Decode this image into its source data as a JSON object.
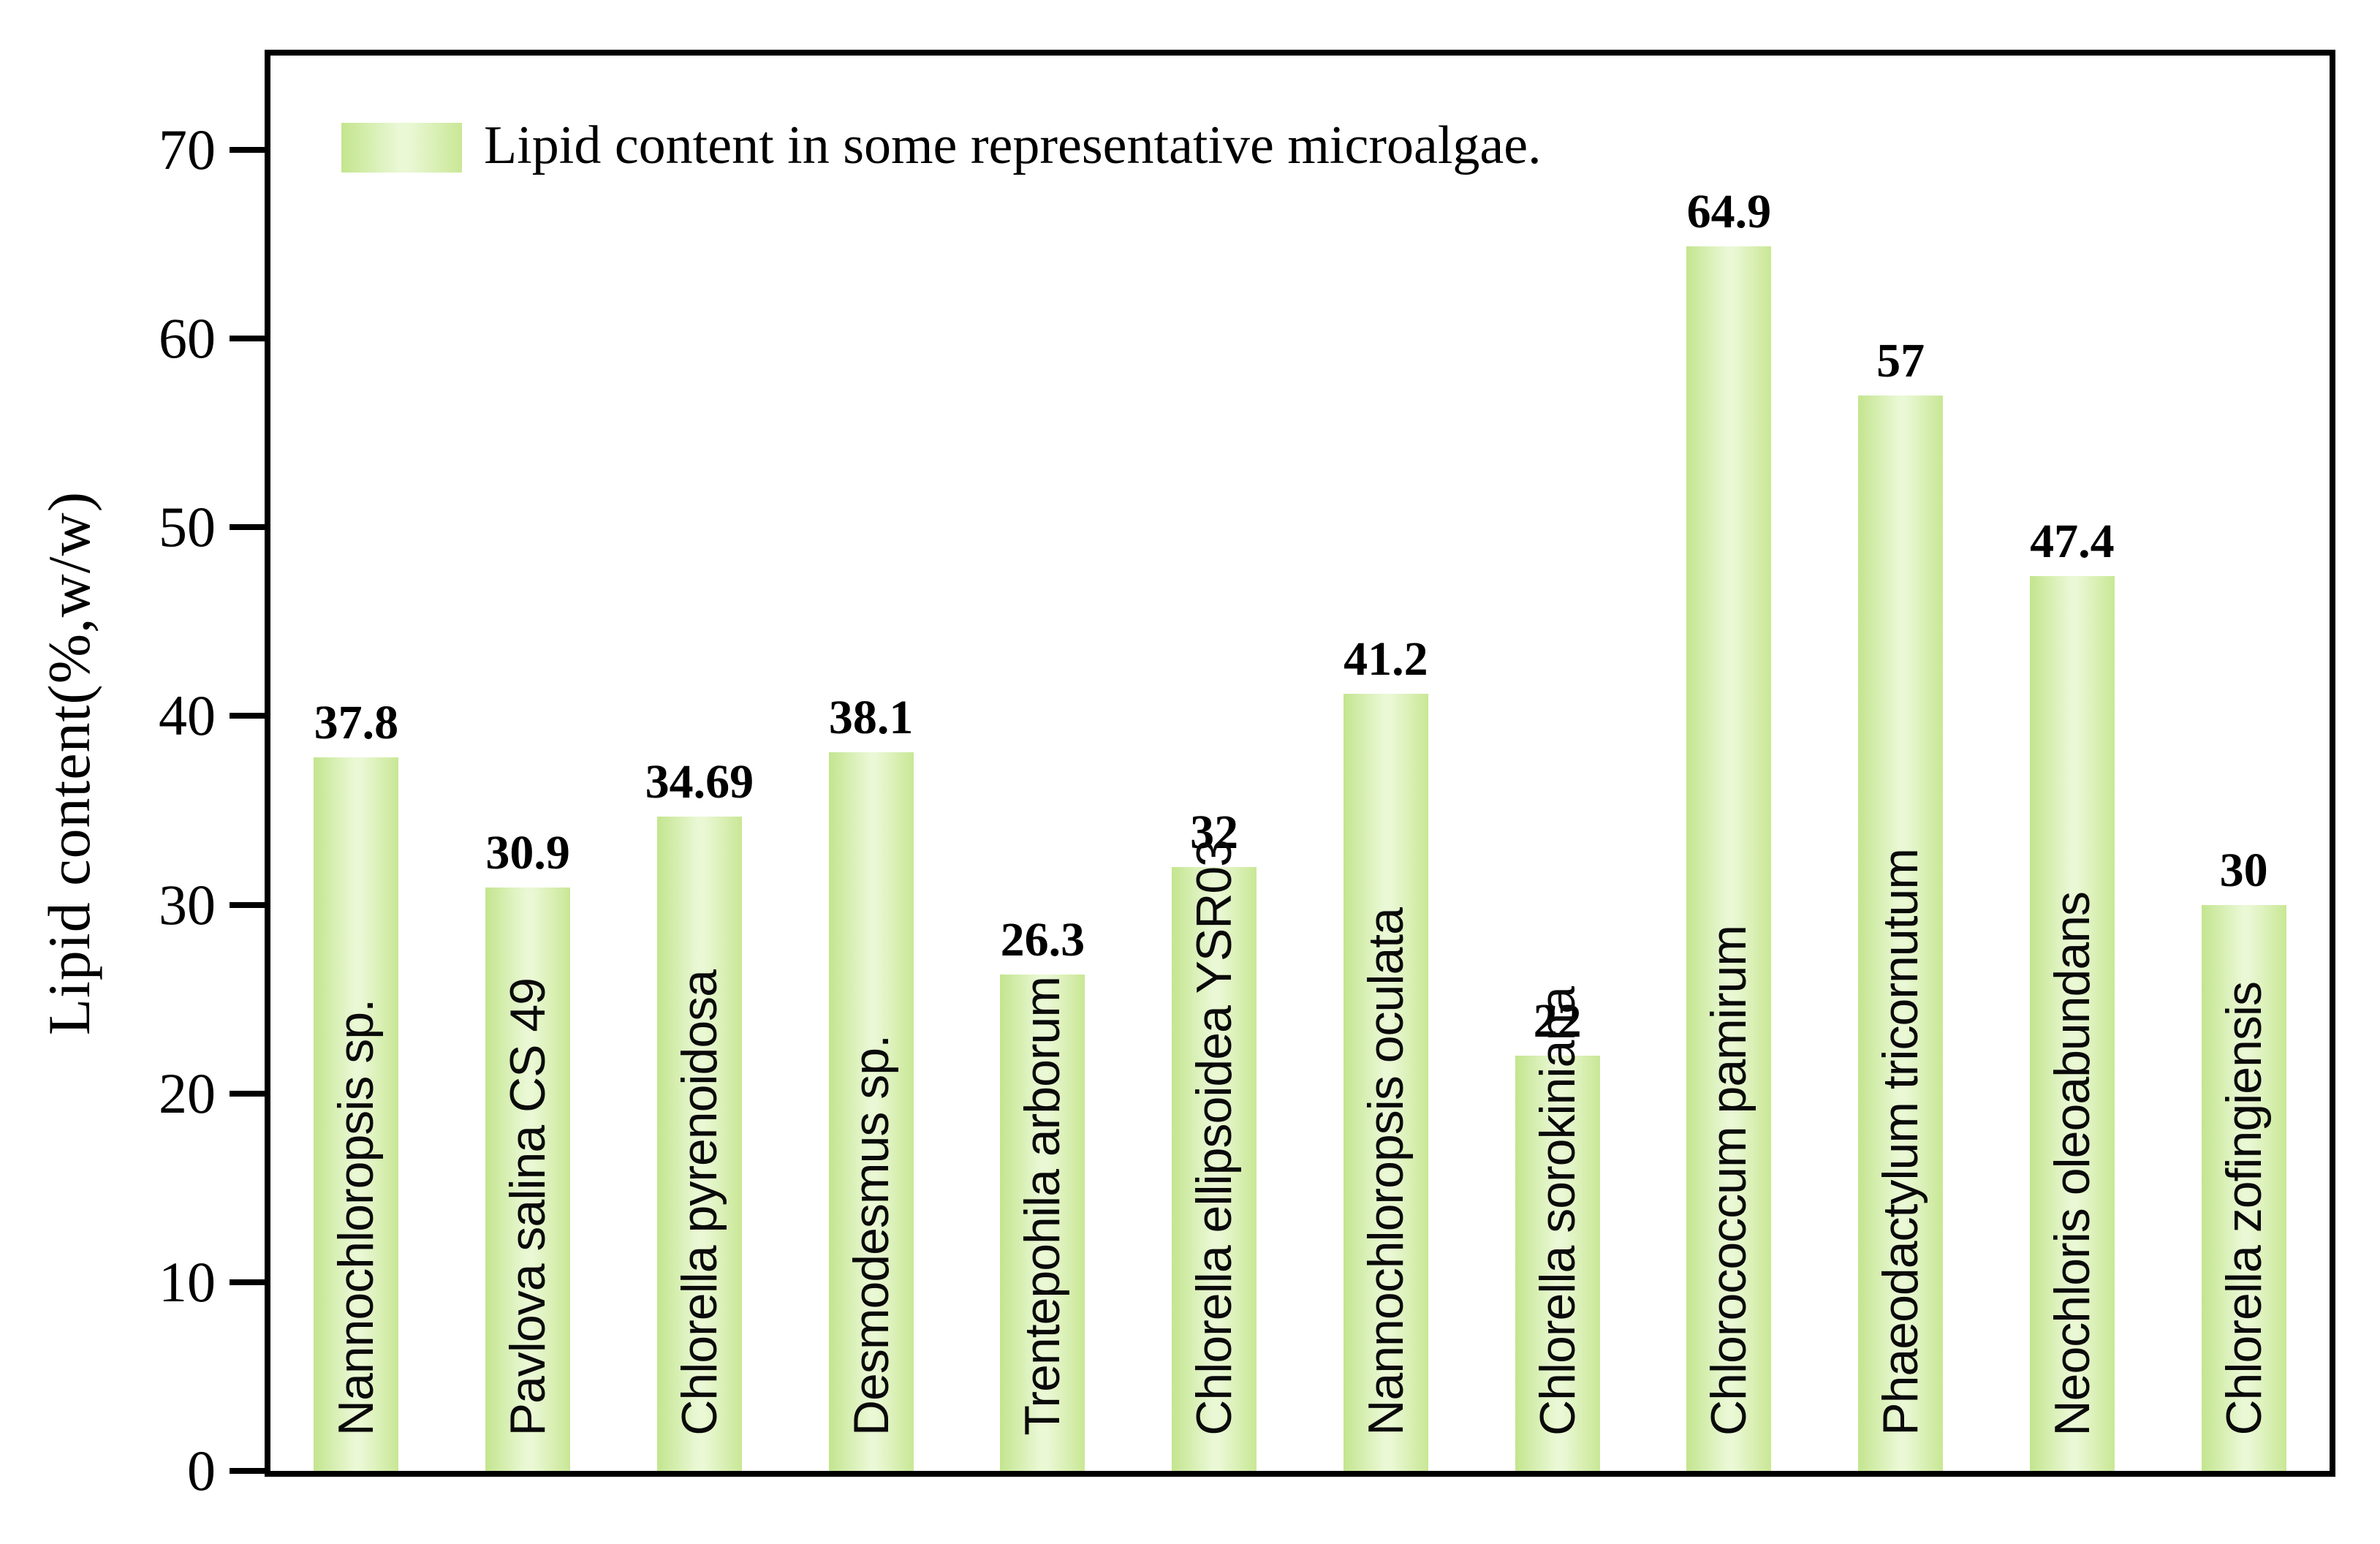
{
  "chart_data": {
    "type": "bar",
    "title": "",
    "legend_label": "Lipid content in some representative microalgae.",
    "ylabel": "Lipid content(%,w/w)",
    "xlabel": "",
    "categories": [
      "Nannochloropsis sp.",
      "Pavlova salina CS 49",
      "Chlorella pyrenoidosa",
      "Desmodesmus sp.",
      "Trentepohila arborum",
      "Chlorella ellipsoidea YSR03",
      "Nannochloropsis oculata",
      "Chlorella sorokiniana",
      "Chlorococcum pamirum",
      "Phaeodactylum tricornutum",
      "Neochloris oleoabundans",
      "Chlorella zofingiensis"
    ],
    "values": [
      37.8,
      30.9,
      34.69,
      38.1,
      26.3,
      32,
      41.2,
      22,
      64.9,
      57,
      47.4,
      30
    ],
    "display_values": [
      "37.8",
      "30.9",
      "34.69",
      "38.1",
      "26.3",
      "32",
      "41.2",
      "22",
      "64.9",
      "57",
      "47.4",
      "30"
    ],
    "yticks": [
      0,
      10,
      20,
      30,
      40,
      50,
      60,
      70
    ],
    "ylim": [
      0,
      75
    ],
    "grid": false,
    "legend_position": "top-left",
    "colors": {
      "bar_edge_left": "#c3e58e",
      "bar_mid": "#eaf8d5",
      "bar_edge_right": "#c9e795",
      "axis": "#000000",
      "text": "#000000",
      "background": "#ffffff"
    }
  }
}
